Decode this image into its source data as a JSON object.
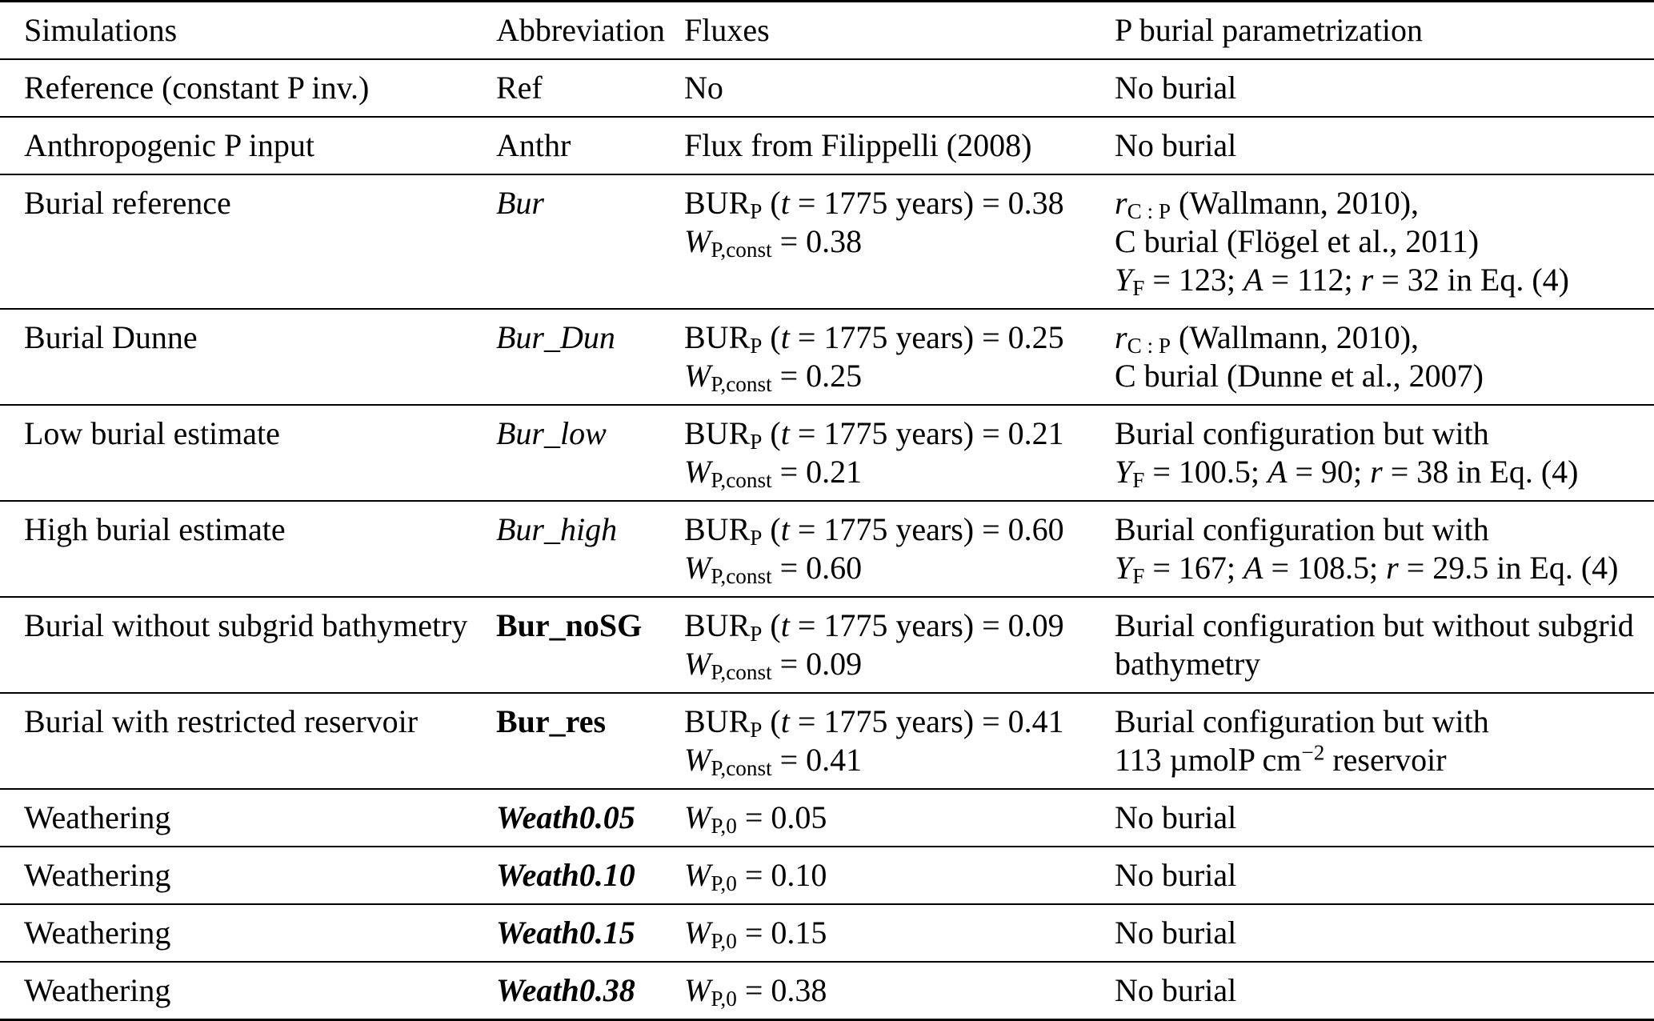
{
  "table": {
    "headers": [
      "Simulations",
      "Abbreviation",
      "Fluxes",
      "P burial parametrization"
    ],
    "rows": [
      {
        "sim": [
          [
            {
              "t": "Reference (constant P inv.)"
            }
          ]
        ],
        "abbr": [
          [
            {
              "t": "Ref"
            }
          ]
        ],
        "flux": [
          [
            {
              "t": "No"
            }
          ]
        ],
        "param": [
          [
            {
              "t": "No burial"
            }
          ]
        ]
      },
      {
        "sim": [
          [
            {
              "t": "Anthropogenic P input"
            }
          ]
        ],
        "abbr": [
          [
            {
              "t": "Anthr"
            }
          ]
        ],
        "flux": [
          [
            {
              "t": "Flux from Filippelli (2008)"
            }
          ]
        ],
        "param": [
          [
            {
              "t": "No burial"
            }
          ]
        ]
      },
      {
        "sim": [
          [
            {
              "t": "Burial reference"
            }
          ]
        ],
        "abbr": [
          [
            {
              "t": "Bur",
              "s": "i"
            }
          ]
        ],
        "flux": [
          [
            {
              "t": "BUR"
            },
            {
              "t": "P",
              "s": "sub"
            },
            {
              "t": " ("
            },
            {
              "t": "t",
              "s": "i"
            },
            {
              "t": " = 1775 years) = 0.38"
            }
          ],
          [
            {
              "t": "W",
              "s": "i"
            },
            {
              "t": "P,const",
              "s": "sub"
            },
            {
              "t": " = 0.38"
            }
          ]
        ],
        "param": [
          [
            {
              "t": "r",
              "s": "i"
            },
            {
              "t": "C : P",
              "s": "sub"
            },
            {
              "t": " (Wallmann, 2010),"
            }
          ],
          [
            {
              "t": "C burial (Flögel et al., 2011)"
            }
          ],
          [
            {
              "t": "Y",
              "s": "i"
            },
            {
              "t": "F",
              "s": "sub"
            },
            {
              "t": " = 123; "
            },
            {
              "t": "A",
              "s": "i"
            },
            {
              "t": " = 112; "
            },
            {
              "t": "r",
              "s": "i"
            },
            {
              "t": " = 32 in Eq. (4)"
            }
          ]
        ]
      },
      {
        "sim": [
          [
            {
              "t": "Burial Dunne"
            }
          ]
        ],
        "abbr": [
          [
            {
              "t": "Bur_Dun",
              "s": "i"
            }
          ]
        ],
        "flux": [
          [
            {
              "t": "BUR"
            },
            {
              "t": "P",
              "s": "sub"
            },
            {
              "t": " ("
            },
            {
              "t": "t",
              "s": "i"
            },
            {
              "t": " = 1775 years) = 0.25"
            }
          ],
          [
            {
              "t": "W",
              "s": "i"
            },
            {
              "t": "P,const",
              "s": "sub"
            },
            {
              "t": " = 0.25"
            }
          ]
        ],
        "param": [
          [
            {
              "t": "r",
              "s": "i"
            },
            {
              "t": "C : P",
              "s": "sub"
            },
            {
              "t": " (Wallmann, 2010),"
            }
          ],
          [
            {
              "t": "C burial (Dunne et al., 2007)"
            }
          ]
        ]
      },
      {
        "sim": [
          [
            {
              "t": "Low burial estimate"
            }
          ]
        ],
        "abbr": [
          [
            {
              "t": "Bur_low",
              "s": "i"
            }
          ]
        ],
        "flux": [
          [
            {
              "t": "BUR"
            },
            {
              "t": "P",
              "s": "sub"
            },
            {
              "t": " ("
            },
            {
              "t": "t",
              "s": "i"
            },
            {
              "t": " = 1775 years) = 0.21"
            }
          ],
          [
            {
              "t": "W",
              "s": "i"
            },
            {
              "t": "P,const",
              "s": "sub"
            },
            {
              "t": " = 0.21"
            }
          ]
        ],
        "param": [
          [
            {
              "t": "Burial configuration but with"
            }
          ],
          [
            {
              "t": "Y",
              "s": "i"
            },
            {
              "t": "F",
              "s": "sub"
            },
            {
              "t": " = 100.5; "
            },
            {
              "t": "A",
              "s": "i"
            },
            {
              "t": " = 90; "
            },
            {
              "t": "r",
              "s": "i"
            },
            {
              "t": " = 38 in Eq. (4)"
            }
          ]
        ]
      },
      {
        "sim": [
          [
            {
              "t": "High burial estimate"
            }
          ]
        ],
        "abbr": [
          [
            {
              "t": "Bur_high",
              "s": "i"
            }
          ]
        ],
        "flux": [
          [
            {
              "t": "BUR"
            },
            {
              "t": "P",
              "s": "sub"
            },
            {
              "t": " ("
            },
            {
              "t": "t",
              "s": "i"
            },
            {
              "t": " = 1775 years) = 0.60"
            }
          ],
          [
            {
              "t": "W",
              "s": "i"
            },
            {
              "t": "P,const",
              "s": "sub"
            },
            {
              "t": " = 0.60"
            }
          ]
        ],
        "param": [
          [
            {
              "t": "Burial configuration but with"
            }
          ],
          [
            {
              "t": "Y",
              "s": "i"
            },
            {
              "t": "F",
              "s": "sub"
            },
            {
              "t": " = 167; "
            },
            {
              "t": "A",
              "s": "i"
            },
            {
              "t": " = 108.5; "
            },
            {
              "t": "r",
              "s": "i"
            },
            {
              "t": " = 29.5 in Eq. (4)"
            }
          ]
        ]
      },
      {
        "sim": [
          [
            {
              "t": "Burial without subgrid bathymetry"
            }
          ]
        ],
        "abbr": [
          [
            {
              "t": "Bur_noSG",
              "s": "b"
            }
          ]
        ],
        "flux": [
          [
            {
              "t": "BUR"
            },
            {
              "t": "P",
              "s": "sub"
            },
            {
              "t": " ("
            },
            {
              "t": "t",
              "s": "i"
            },
            {
              "t": " = 1775 years) = 0.09"
            }
          ],
          [
            {
              "t": "W",
              "s": "i"
            },
            {
              "t": "P,const",
              "s": "sub"
            },
            {
              "t": " = 0.09"
            }
          ]
        ],
        "param": [
          [
            {
              "t": "Burial configuration but without subgrid"
            }
          ],
          [
            {
              "t": "bathymetry"
            }
          ]
        ]
      },
      {
        "sim": [
          [
            {
              "t": "Burial with restricted reservoir"
            }
          ]
        ],
        "abbr": [
          [
            {
              "t": "Bur_res",
              "s": "b"
            }
          ]
        ],
        "flux": [
          [
            {
              "t": "BUR"
            },
            {
              "t": "P",
              "s": "sub"
            },
            {
              "t": " ("
            },
            {
              "t": "t",
              "s": "i"
            },
            {
              "t": " = 1775 years) = 0.41"
            }
          ],
          [
            {
              "t": "W",
              "s": "i"
            },
            {
              "t": "P,const",
              "s": "sub"
            },
            {
              "t": " = 0.41"
            }
          ]
        ],
        "param": [
          [
            {
              "t": "Burial configuration but with"
            }
          ],
          [
            {
              "t": "113 µmolP cm"
            },
            {
              "t": "−2",
              "s": "sup"
            },
            {
              "t": " reservoir"
            }
          ]
        ]
      },
      {
        "sim": [
          [
            {
              "t": "Weathering"
            }
          ]
        ],
        "abbr": [
          [
            {
              "t": "Weath0.05",
              "s": "bi"
            }
          ]
        ],
        "flux": [
          [
            {
              "t": "W",
              "s": "i"
            },
            {
              "t": "P,0",
              "s": "sub"
            },
            {
              "t": " = 0.05"
            }
          ]
        ],
        "param": [
          [
            {
              "t": "No burial"
            }
          ]
        ]
      },
      {
        "sim": [
          [
            {
              "t": "Weathering"
            }
          ]
        ],
        "abbr": [
          [
            {
              "t": "Weath0.10",
              "s": "bi"
            }
          ]
        ],
        "flux": [
          [
            {
              "t": "W",
              "s": "i"
            },
            {
              "t": "P,0",
              "s": "sub"
            },
            {
              "t": " = 0.10"
            }
          ]
        ],
        "param": [
          [
            {
              "t": "No burial"
            }
          ]
        ]
      },
      {
        "sim": [
          [
            {
              "t": "Weathering"
            }
          ]
        ],
        "abbr": [
          [
            {
              "t": "Weath0.15",
              "s": "bi"
            }
          ]
        ],
        "flux": [
          [
            {
              "t": "W",
              "s": "i"
            },
            {
              "t": "P,0",
              "s": "sub"
            },
            {
              "t": " = 0.15"
            }
          ]
        ],
        "param": [
          [
            {
              "t": "No burial"
            }
          ]
        ]
      },
      {
        "sim": [
          [
            {
              "t": "Weathering"
            }
          ]
        ],
        "abbr": [
          [
            {
              "t": "Weath0.38",
              "s": "bi"
            }
          ]
        ],
        "flux": [
          [
            {
              "t": "W",
              "s": "i"
            },
            {
              "t": "P,0",
              "s": "sub"
            },
            {
              "t": " = 0.38"
            }
          ]
        ],
        "param": [
          [
            {
              "t": "No burial"
            }
          ]
        ]
      }
    ]
  }
}
